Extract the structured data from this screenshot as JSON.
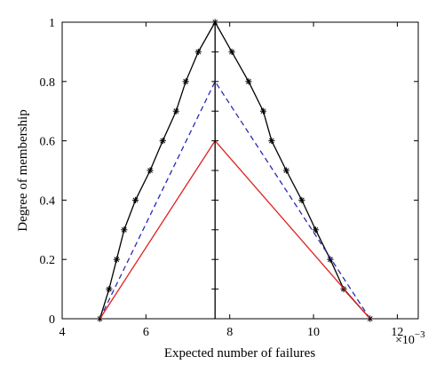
{
  "chart_data": {
    "type": "line",
    "title": "",
    "xlabel": "Expected number of failures",
    "ylabel": "Degree of membership",
    "x_multiplier_label": "×10",
    "x_multiplier_exponent": "−3",
    "xlim": [
      4,
      12.5
    ],
    "ylim": [
      0,
      1
    ],
    "xticks": [
      4,
      6,
      8,
      10,
      12
    ],
    "xtick_labels": [
      "4",
      "6",
      "8",
      "10",
      "12"
    ],
    "yticks": [
      0,
      0.2,
      0.4,
      0.6,
      0.8,
      1
    ],
    "ytick_labels": [
      "0",
      "0.2",
      "0.4",
      "0.6",
      "0.8",
      "1"
    ],
    "grid": false,
    "legend": "none",
    "vertical_line": {
      "x": 7.65,
      "color": "#000000",
      "minor_tick_levels": [
        0.1,
        0.2,
        0.3,
        0.4,
        0.5,
        0.6,
        0.7,
        0.8,
        0.9
      ]
    },
    "series": [
      {
        "style": "solid",
        "color": "#000000",
        "marker": "asterisk",
        "points": [
          [
            4.9,
            0
          ],
          [
            5.12,
            0.1
          ],
          [
            5.3,
            0.2
          ],
          [
            5.48,
            0.3
          ],
          [
            5.75,
            0.4
          ],
          [
            6.1,
            0.5
          ],
          [
            6.4,
            0.6
          ],
          [
            6.72,
            0.7
          ],
          [
            6.95,
            0.8
          ],
          [
            7.25,
            0.9
          ],
          [
            7.65,
            1.0
          ],
          [
            8.05,
            0.9
          ],
          [
            8.45,
            0.8
          ],
          [
            8.8,
            0.7
          ],
          [
            9.0,
            0.6
          ],
          [
            9.35,
            0.5
          ],
          [
            9.72,
            0.4
          ],
          [
            10.05,
            0.3
          ],
          [
            10.4,
            0.2
          ],
          [
            10.72,
            0.1
          ],
          [
            11.35,
            0
          ]
        ]
      },
      {
        "style": "dashed",
        "color": "#2b2bb3",
        "marker": "none",
        "points": [
          [
            4.9,
            0
          ],
          [
            7.65,
            0.8
          ],
          [
            11.35,
            0
          ]
        ]
      },
      {
        "style": "solid",
        "color": "#e02020",
        "marker": "none",
        "points": [
          [
            4.9,
            0
          ],
          [
            7.65,
            0.6
          ],
          [
            11.35,
            0
          ]
        ]
      }
    ]
  }
}
